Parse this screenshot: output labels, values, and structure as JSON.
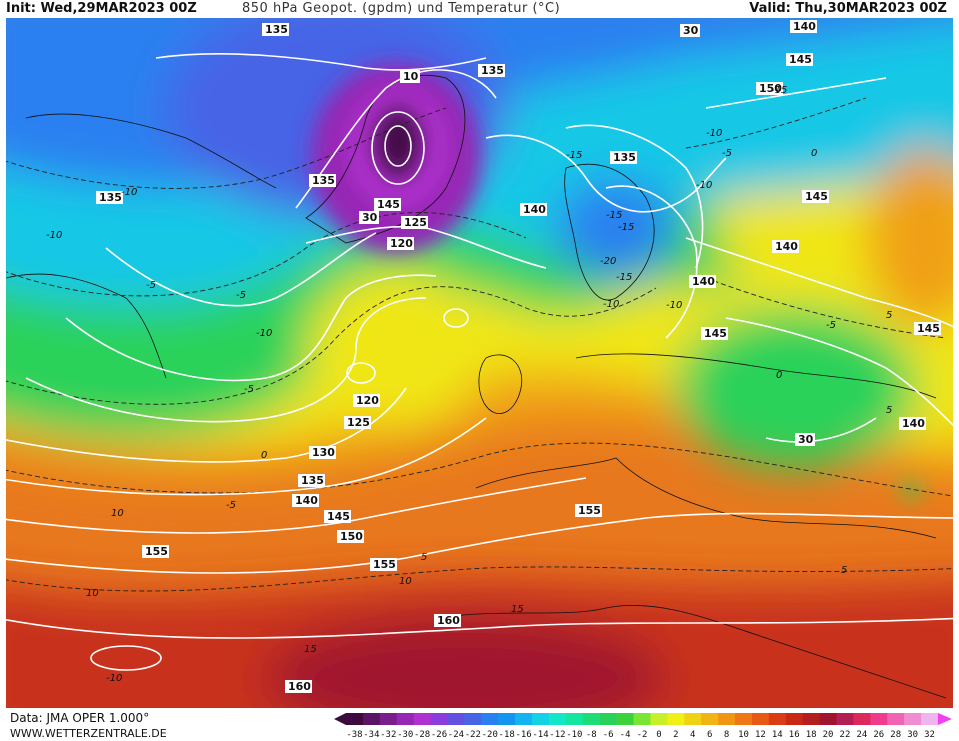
{
  "header": {
    "init": "Init: Wed,29MAR2023 00Z",
    "title": "850 hPa Geopot. (gpdm) und Temperatur (°C)",
    "valid": "Valid: Thu,30MAR2023 00Z"
  },
  "footer": {
    "data_source": "Data: JMA OPER 1.000°",
    "website": "WWW.WETTERZENTRALE.DE"
  },
  "geopotential_labels": [
    "135",
    "135",
    "140",
    "145",
    "150",
    "10",
    "135",
    "135",
    "140",
    "145",
    "140",
    "135",
    "125",
    "120",
    "140",
    "145",
    "145",
    "140",
    "120",
    "125",
    "130",
    "135",
    "140",
    "145",
    "150",
    "155",
    "155",
    "155",
    "160",
    "160",
    "30",
    "30",
    "30",
    "145"
  ],
  "temperature_labels": [
    "-10",
    "-15",
    "-10",
    "-5",
    "0",
    "-10",
    "-5",
    "0",
    "-5",
    "-10",
    "-15",
    "-20",
    "-15",
    "-10",
    "-5",
    "0",
    "5",
    "-10",
    "-15",
    "-5",
    "-10",
    "-15",
    "5",
    "-5",
    "10",
    "10",
    "10",
    "15",
    "-10",
    "15",
    "5",
    "5"
  ],
  "colorbar": {
    "ticks": [
      "-38",
      "-34",
      "-32",
      "-30",
      "-28",
      "-26",
      "-24",
      "-22",
      "-20",
      "-18",
      "-16",
      "-14",
      "-12",
      "-10",
      "-8",
      "-6",
      "-4",
      "-2",
      "0",
      "2",
      "4",
      "6",
      "8",
      "10",
      "12",
      "14",
      "16",
      "18",
      "20",
      "22",
      "24",
      "26",
      "28",
      "30",
      "32"
    ],
    "colors": [
      "#3c0a3c",
      "#5a1464",
      "#7a1e8c",
      "#9626b4",
      "#b030d0",
      "#8a3cdc",
      "#6450e0",
      "#4664e6",
      "#2a80f0",
      "#1496f0",
      "#14b4f0",
      "#14d2e6",
      "#14e6c8",
      "#14e6a0",
      "#1edc78",
      "#28d25a",
      "#3cd23c",
      "#78e632",
      "#c8f028",
      "#f0f014",
      "#f0d214",
      "#f0b414",
      "#f09614",
      "#f07814",
      "#e65a14",
      "#dc3c14",
      "#c82814",
      "#b41e1e",
      "#a0142d",
      "#b41e50",
      "#dc285a",
      "#f03c8c",
      "#f064b4",
      "#f08cd2",
      "#f0b4f0"
    ]
  }
}
